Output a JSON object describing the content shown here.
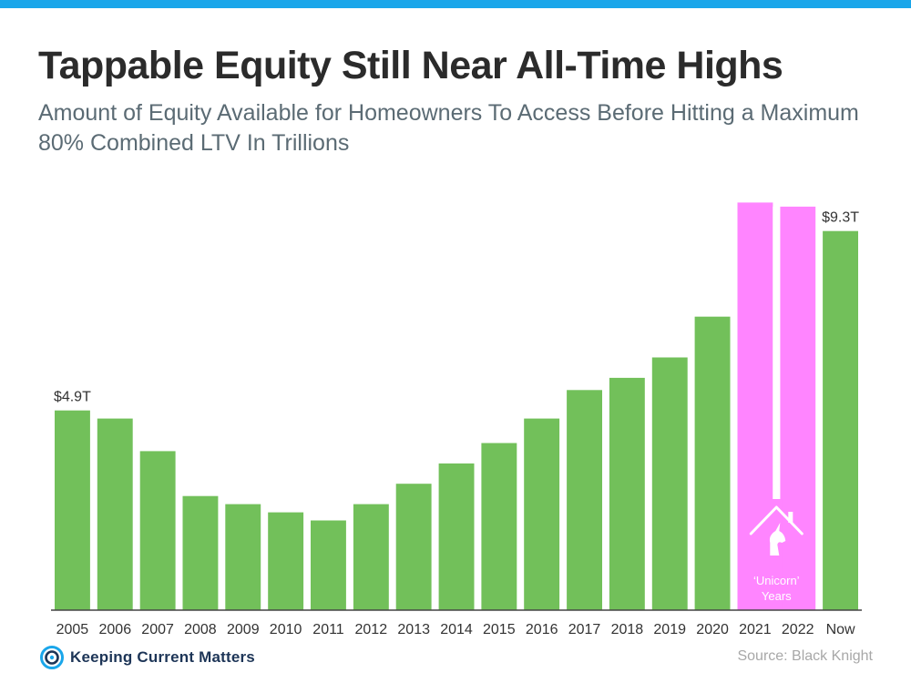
{
  "header": {
    "title": "Tappable Equity Still Near All-Time Highs",
    "subtitle": "Amount of Equity Available for Homeowners To Access Before Hitting a Maximum 80% Combined LTV In Trillions"
  },
  "colors": {
    "top_bar": "#1aa6ea",
    "bar_default": "#72c05a",
    "bar_highlight": "#ff85ff",
    "label_text": "#333333",
    "annotation_text": "#ffffff"
  },
  "chart_data": {
    "type": "bar",
    "categories": [
      "2005",
      "2006",
      "2007",
      "2008",
      "2009",
      "2010",
      "2011",
      "2012",
      "2013",
      "2014",
      "2015",
      "2016",
      "2017",
      "2018",
      "2019",
      "2020",
      "2021",
      "2022",
      "Now"
    ],
    "values": [
      4.9,
      4.7,
      3.9,
      2.8,
      2.6,
      2.4,
      2.2,
      2.6,
      3.1,
      3.6,
      4.1,
      4.7,
      5.4,
      5.7,
      6.2,
      7.2,
      10.0,
      9.9,
      9.3
    ],
    "highlight": [
      false,
      false,
      false,
      false,
      false,
      false,
      false,
      false,
      false,
      false,
      false,
      false,
      false,
      false,
      false,
      false,
      true,
      true,
      false
    ],
    "data_labels": [
      {
        "index": 0,
        "text": "$4.9T"
      },
      {
        "index": 18,
        "text": "$9.3T"
      }
    ],
    "annotation": {
      "icon": "unicorn-house-icon",
      "lines": [
        "‘Unicorn’",
        "Years"
      ]
    },
    "ylim": [
      0,
      10.5
    ],
    "grid": false,
    "legend": "none"
  },
  "footer": {
    "logo": {
      "icon": "kcm-swirl-icon",
      "text": "Keeping Current Matters",
      "color": "#1d3557"
    },
    "source": "Source: Black Knight"
  }
}
